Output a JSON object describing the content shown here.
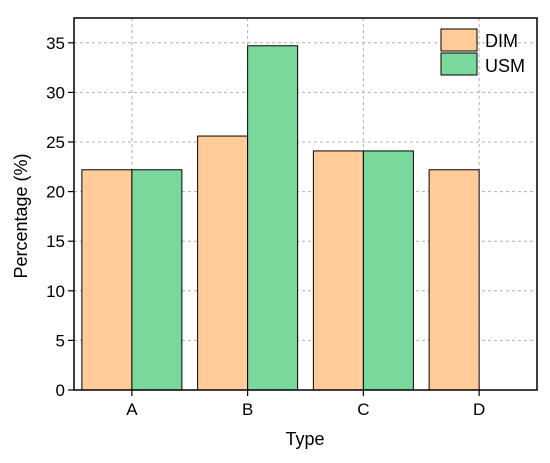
{
  "chart_data": {
    "type": "bar",
    "title": "",
    "xlabel": "Type",
    "ylabel": "Percentage (%)",
    "categories": [
      "A",
      "B",
      "C",
      "D"
    ],
    "series": [
      {
        "name": "DIM",
        "color": "#FFCC99",
        "values": [
          22.2,
          25.6,
          24.1,
          22.2
        ]
      },
      {
        "name": "USM",
        "color": "#7BD89C",
        "values": [
          22.2,
          34.7,
          24.1,
          0
        ]
      }
    ],
    "ylim": [
      0,
      37.5
    ],
    "yticks": [
      "0",
      "5",
      "10",
      "15",
      "20",
      "25",
      "30",
      "35"
    ],
    "grid": true,
    "legend_position": "top-right"
  }
}
